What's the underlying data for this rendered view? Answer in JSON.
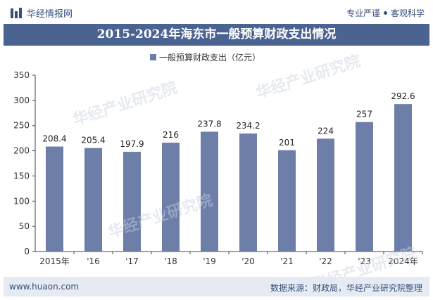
{
  "header": {
    "brand": "华经情报网",
    "tag1": "专业严谨",
    "tag2": "客观科学"
  },
  "title": "2015-2024年海东市一般预算财政支出情况",
  "footer": {
    "website": "www.huaon.com",
    "source": "数据来源：财政局，华经产业研究院整理"
  },
  "watermark": "华经产业研究院",
  "colors": {
    "bar": "#6d7fa8",
    "title_bg": "#4b6391",
    "brand": "#35507c"
  },
  "chart_data": {
    "type": "bar",
    "categories": [
      "2015年",
      "'16",
      "'17",
      "'18",
      "'19",
      "'20",
      "'21",
      "'22",
      "'23",
      "2024年"
    ],
    "series": [
      {
        "name": "一般预算财政支出（亿元）",
        "values": [
          208.4,
          205.4,
          197.9,
          216,
          237.8,
          234.2,
          201,
          224,
          257,
          292.6
        ]
      }
    ],
    "value_labels": [
      "208.4",
      "205.4",
      "197.9",
      "216",
      "237.8",
      "234.2",
      "201",
      "224",
      "257",
      "292.6"
    ],
    "ylim": [
      0,
      350
    ],
    "yticks": [
      "0",
      "50",
      "100",
      "150",
      "200",
      "250",
      "300",
      "350"
    ],
    "legend_position": "top-center",
    "grid": false
  }
}
